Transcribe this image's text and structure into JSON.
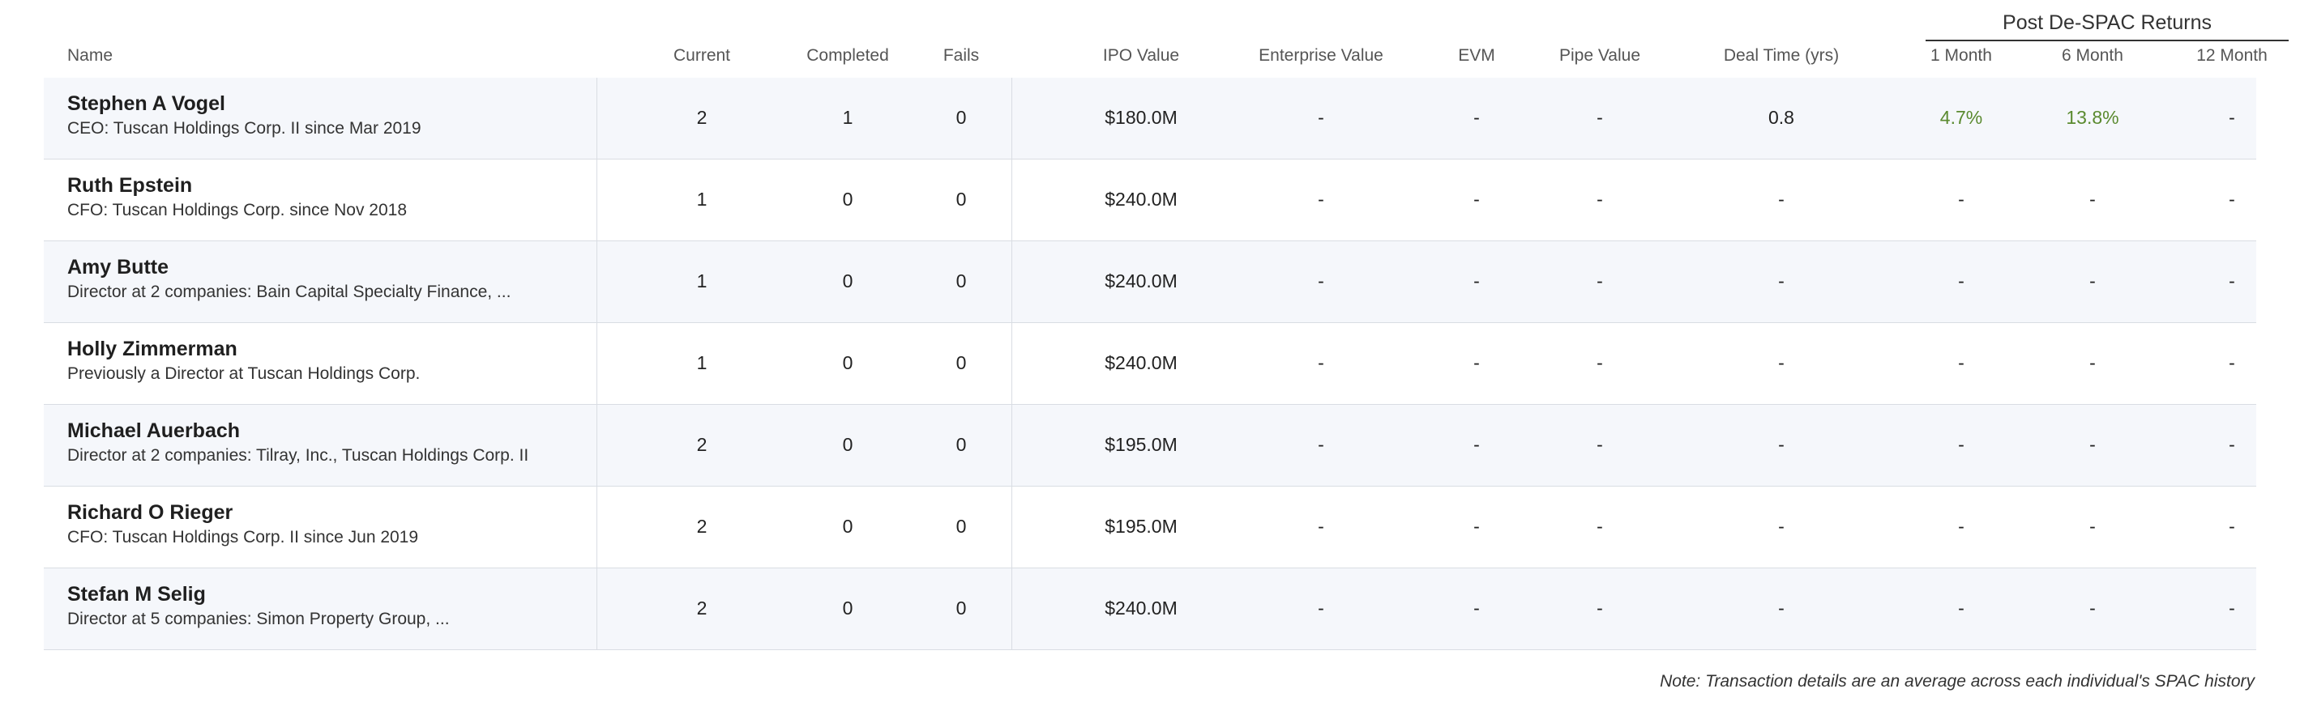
{
  "table": {
    "group_header": "Post De-SPAC Returns",
    "columns": {
      "name": "Name",
      "current": "Current",
      "completed": "Completed",
      "fails": "Fails",
      "ipo_value": "IPO Value",
      "enterprise_value": "Enterprise Value",
      "evm": "EVM",
      "pipe_value": "Pipe Value",
      "deal_time": "Deal Time (yrs)",
      "m1": "1 Month",
      "m6": "6 Month",
      "m12": "12 Month"
    },
    "rows": [
      {
        "name": "Stephen A Vogel",
        "sub": "CEO: Tuscan Holdings Corp. II since Mar 2019",
        "current": "2",
        "completed": "1",
        "fails": "0",
        "ipo_value": "$180.0M",
        "enterprise_value": "-",
        "evm": "-",
        "pipe_value": "-",
        "deal_time": "0.8",
        "m1": "4.7%",
        "m6": "13.8%",
        "m12": "-"
      },
      {
        "name": "Ruth Epstein",
        "sub": "CFO: Tuscan Holdings Corp. since Nov 2018",
        "current": "1",
        "completed": "0",
        "fails": "0",
        "ipo_value": "$240.0M",
        "enterprise_value": "-",
        "evm": "-",
        "pipe_value": "-",
        "deal_time": "-",
        "m1": "-",
        "m6": "-",
        "m12": "-"
      },
      {
        "name": "Amy Butte",
        "sub": "Director at 2 companies: Bain Capital Specialty Finance, ...",
        "current": "1",
        "completed": "0",
        "fails": "0",
        "ipo_value": "$240.0M",
        "enterprise_value": "-",
        "evm": "-",
        "pipe_value": "-",
        "deal_time": "-",
        "m1": "-",
        "m6": "-",
        "m12": "-"
      },
      {
        "name": "Holly Zimmerman",
        "sub": "Previously a Director at Tuscan Holdings Corp.",
        "current": "1",
        "completed": "0",
        "fails": "0",
        "ipo_value": "$240.0M",
        "enterprise_value": "-",
        "evm": "-",
        "pipe_value": "-",
        "deal_time": "-",
        "m1": "-",
        "m6": "-",
        "m12": "-"
      },
      {
        "name": "Michael Auerbach",
        "sub": "Director at 2 companies: Tilray, Inc., Tuscan Holdings Corp. II",
        "current": "2",
        "completed": "0",
        "fails": "0",
        "ipo_value": "$195.0M",
        "enterprise_value": "-",
        "evm": "-",
        "pipe_value": "-",
        "deal_time": "-",
        "m1": "-",
        "m6": "-",
        "m12": "-"
      },
      {
        "name": "Richard O Rieger",
        "sub": "CFO: Tuscan Holdings Corp. II since Jun 2019",
        "current": "2",
        "completed": "0",
        "fails": "0",
        "ipo_value": "$195.0M",
        "enterprise_value": "-",
        "evm": "-",
        "pipe_value": "-",
        "deal_time": "-",
        "m1": "-",
        "m6": "-",
        "m12": "-"
      },
      {
        "name": "Stefan M Selig",
        "sub": "Director at 5 companies: Simon Property Group, ...",
        "current": "2",
        "completed": "0",
        "fails": "0",
        "ipo_value": "$240.0M",
        "enterprise_value": "-",
        "evm": "-",
        "pipe_value": "-",
        "deal_time": "-",
        "m1": "-",
        "m6": "-",
        "m12": "-"
      }
    ],
    "note": "Note: Transaction details are an average across each individual's SPAC history"
  },
  "colors": {
    "positive_return": "#5a8a2f",
    "row_stripe": "#f5f7fb",
    "divider": "#d9dde3"
  }
}
